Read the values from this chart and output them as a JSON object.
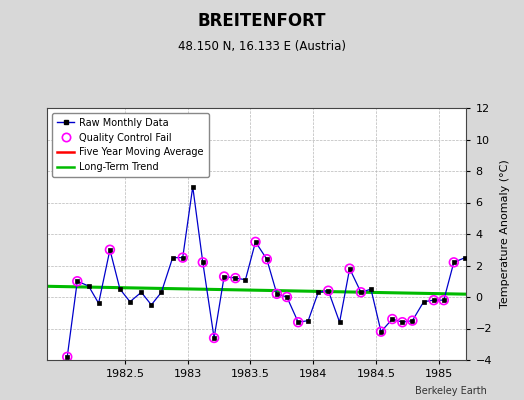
{
  "title": "BREITENFORT",
  "subtitle": "48.150 N, 16.133 E (Austria)",
  "ylabel": "Temperature Anomaly (°C)",
  "credit": "Berkeley Earth",
  "background_color": "#d8d8d8",
  "plot_bg_color": "#ffffff",
  "xlim": [
    1981.88,
    1985.22
  ],
  "ylim": [
    -4,
    12
  ],
  "yticks": [
    -4,
    -2,
    0,
    2,
    4,
    6,
    8,
    10,
    12
  ],
  "xticks": [
    1982.5,
    1983.0,
    1983.5,
    1984.0,
    1984.5,
    1985.0
  ],
  "xticklabels": [
    "1982.5",
    "1983",
    "1983.5",
    "1984",
    "1984.5",
    "1985"
  ],
  "raw_x": [
    1982.04,
    1982.12,
    1982.21,
    1982.29,
    1982.38,
    1982.46,
    1982.54,
    1982.63,
    1982.71,
    1982.79,
    1982.88,
    1982.96,
    1983.04,
    1983.12,
    1983.21,
    1983.29,
    1983.38,
    1983.46,
    1983.54,
    1983.63,
    1983.71,
    1983.79,
    1983.88,
    1983.96,
    1984.04,
    1984.12,
    1984.21,
    1984.29,
    1984.38,
    1984.46,
    1984.54,
    1984.63,
    1984.71,
    1984.79,
    1984.88,
    1984.96,
    1985.04,
    1985.12,
    1985.21
  ],
  "raw_y": [
    -3.8,
    1.0,
    0.7,
    -0.4,
    3.0,
    0.5,
    -0.3,
    0.3,
    -0.5,
    0.3,
    2.5,
    2.5,
    7.0,
    2.2,
    -2.6,
    1.3,
    1.2,
    1.1,
    3.5,
    2.4,
    0.2,
    0.0,
    -1.6,
    -1.5,
    0.3,
    0.4,
    -1.6,
    1.8,
    0.3,
    0.5,
    -2.2,
    -1.4,
    -1.6,
    -1.5,
    -0.3,
    -0.2,
    -0.2,
    2.2,
    2.5
  ],
  "qc_fail_x": [
    1982.04,
    1982.12,
    1982.38,
    1982.96,
    1983.12,
    1983.21,
    1983.29,
    1983.38,
    1983.54,
    1983.63,
    1983.71,
    1983.79,
    1983.88,
    1984.12,
    1984.29,
    1984.38,
    1984.54,
    1984.63,
    1984.71,
    1984.79,
    1984.96,
    1985.04,
    1985.12
  ],
  "qc_fail_y": [
    -3.8,
    1.0,
    3.0,
    2.5,
    2.2,
    -2.6,
    1.3,
    1.2,
    3.5,
    2.4,
    0.2,
    0.0,
    -1.6,
    0.4,
    1.8,
    0.3,
    -2.2,
    -1.4,
    -1.6,
    -1.5,
    -0.2,
    -0.2,
    2.2
  ],
  "trend_x": [
    1981.88,
    1985.22
  ],
  "trend_y": [
    0.68,
    0.18
  ],
  "raw_line_color": "#0000cc",
  "raw_marker_color": "#000000",
  "qc_color": "#ff00ff",
  "trend_color": "#00bb00",
  "moving_avg_color": "#ff0000"
}
